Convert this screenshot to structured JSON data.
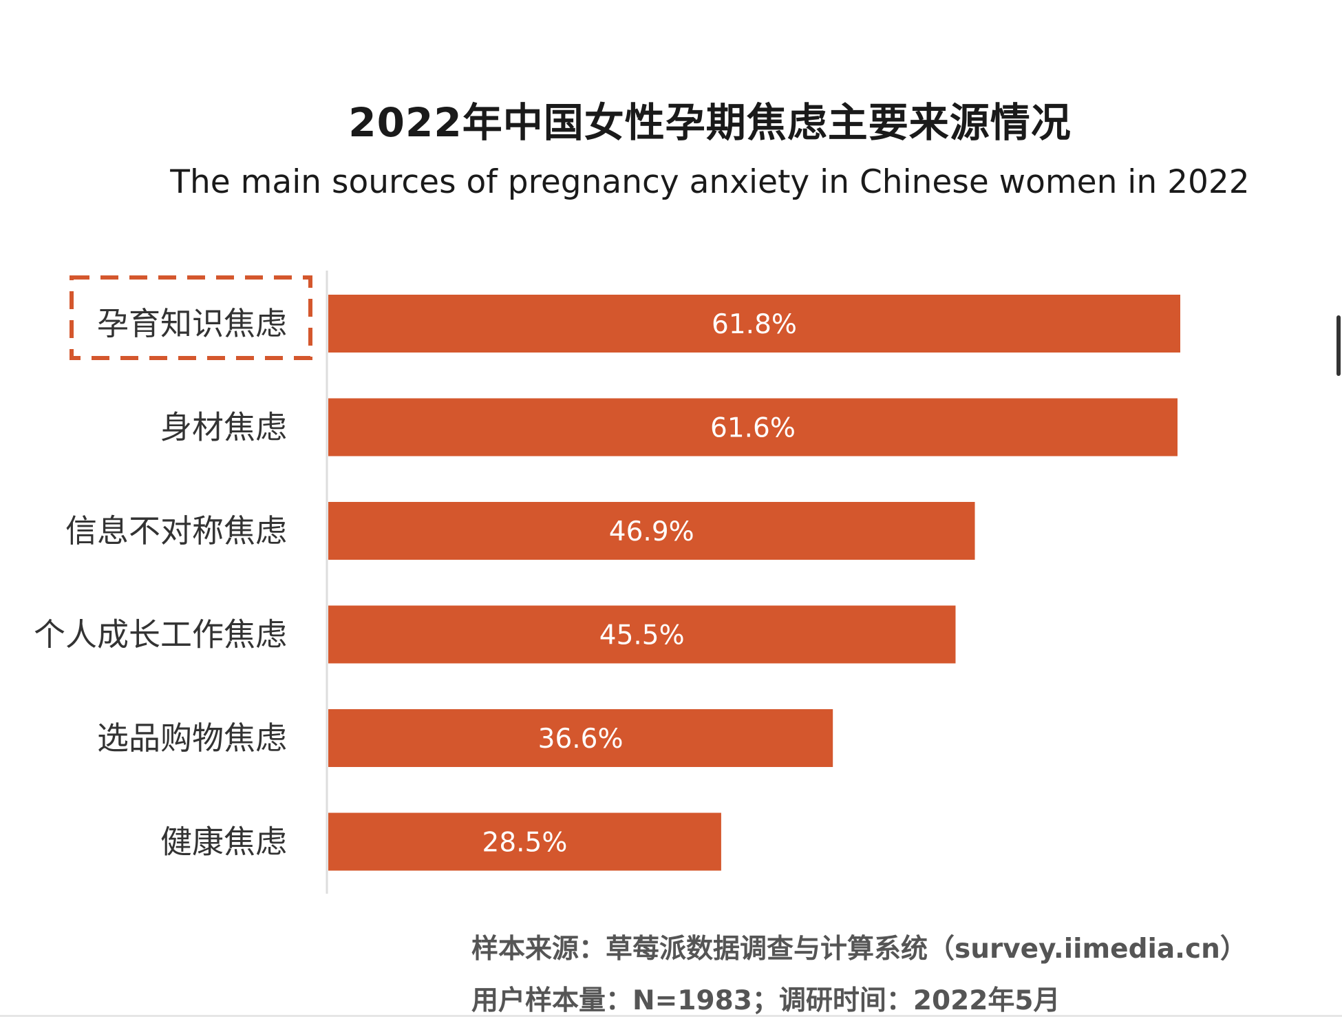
{
  "chart_data": {
    "type": "bar",
    "orientation": "horizontal",
    "title": "2022年中国女性孕期焦虑主要来源情况",
    "subtitle": "The main sources of pregnancy anxiety in Chinese women in 2022",
    "categories": [
      "孕育知识焦虑",
      "身材焦虑",
      "信息不对称焦虑",
      "个人成长工作焦虑",
      "选品购物焦虑",
      "健康焦虑"
    ],
    "values": [
      61.8,
      61.6,
      46.9,
      45.5,
      36.6,
      28.5
    ],
    "value_labels": [
      "61.8%",
      "61.6%",
      "46.9%",
      "45.5%",
      "36.6%",
      "28.5%"
    ],
    "unit": "%",
    "highlighted_category": "孕育知识焦虑",
    "colors": {
      "bar": "#d4572d",
      "highlight_box": "#d4572d",
      "axis": "#dddddd",
      "label": "#333333"
    },
    "grid": false,
    "xlim": [
      0,
      100
    ],
    "xlabel": "",
    "ylabel": ""
  },
  "source": {
    "line1": "样本来源：草莓派数据调查与计算系统（survey.iimedia.cn）",
    "line2": "用户样本量：N=1983；调研时间：2022年5月"
  }
}
